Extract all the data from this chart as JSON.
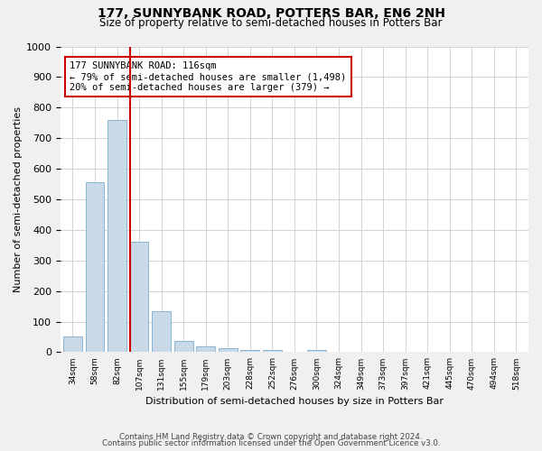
{
  "title1": "177, SUNNYBANK ROAD, POTTERS BAR, EN6 2NH",
  "title2": "Size of property relative to semi-detached houses in Potters Bar",
  "xlabel": "Distribution of semi-detached houses by size in Potters Bar",
  "ylabel": "Number of semi-detached properties",
  "categories": [
    "34sqm",
    "58sqm",
    "82sqm",
    "107sqm",
    "131sqm",
    "155sqm",
    "179sqm",
    "203sqm",
    "228sqm",
    "252sqm",
    "276sqm",
    "300sqm",
    "324sqm",
    "349sqm",
    "373sqm",
    "397sqm",
    "421sqm",
    "445sqm",
    "470sqm",
    "494sqm",
    "518sqm"
  ],
  "values": [
    50,
    555,
    760,
    360,
    133,
    38,
    18,
    13,
    8,
    8,
    0,
    8,
    0,
    0,
    0,
    0,
    0,
    0,
    0,
    0,
    0
  ],
  "bar_color": "#c9d9e8",
  "bar_edge_color": "#8ab4d0",
  "vline_color": "#cc0000",
  "annotation_text": "177 SUNNYBANK ROAD: 116sqm\n← 79% of semi-detached houses are smaller (1,498)\n20% of semi-detached houses are larger (379) →",
  "annotation_box_color": "#ffffff",
  "annotation_box_edge_color": "#cc0000",
  "ylim": [
    0,
    1000
  ],
  "yticks": [
    0,
    100,
    200,
    300,
    400,
    500,
    600,
    700,
    800,
    900,
    1000
  ],
  "footer1": "Contains HM Land Registry data © Crown copyright and database right 2024.",
  "footer2": "Contains public sector information licensed under the Open Government Licence v3.0.",
  "bg_color": "#f0f0f0",
  "plot_bg_color": "#ffffff",
  "grid_color": "#cccccc",
  "title1_fontsize": 10,
  "title2_fontsize": 8.5,
  "bar_width": 0.85,
  "vline_index": 3
}
